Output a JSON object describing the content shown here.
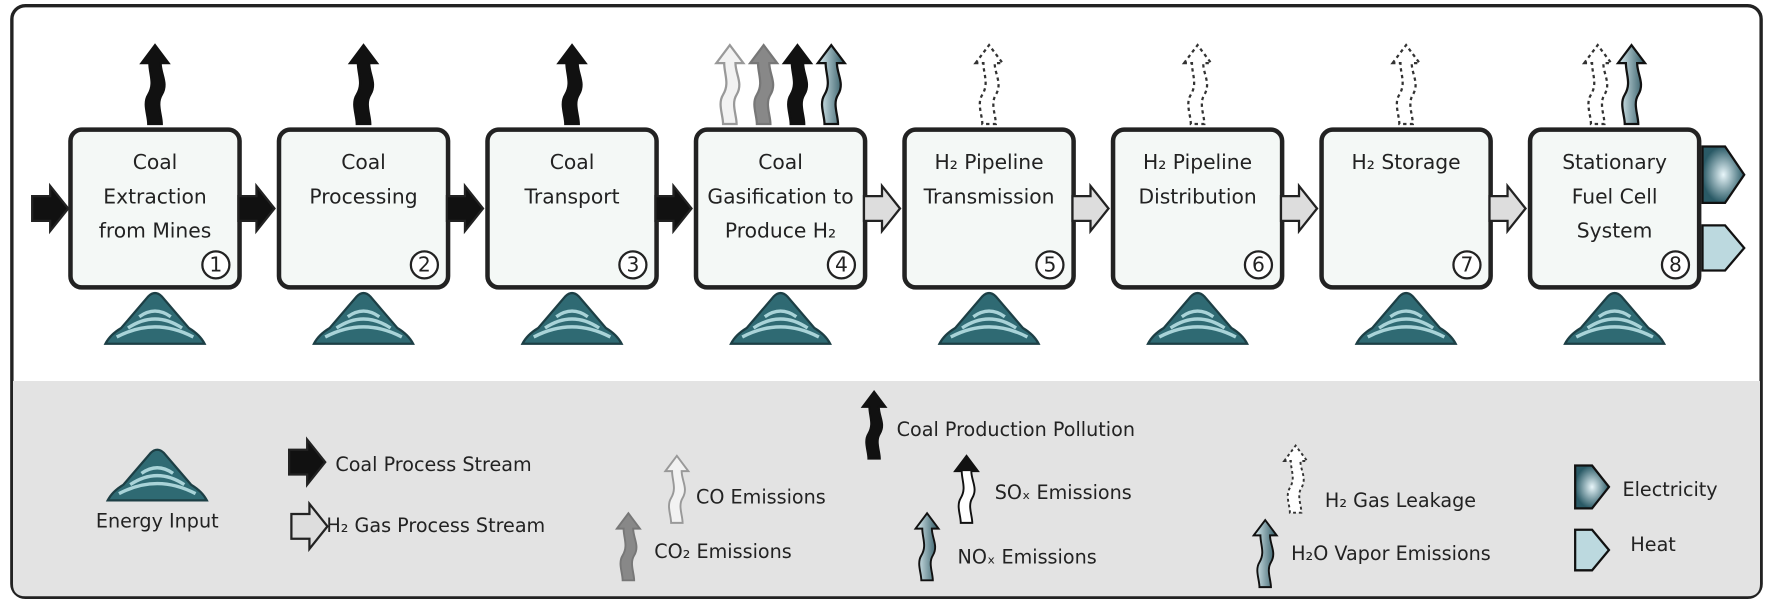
{
  "nodes": [
    {
      "lines": [
        "Coal",
        "Extraction",
        "from Mines"
      ],
      "number": 1
    },
    {
      "lines": [
        "Coal",
        "Processing"
      ],
      "number": 2
    },
    {
      "lines": [
        "Coal",
        "Transport"
      ],
      "number": 3
    },
    {
      "lines": [
        "Coal",
        "Gasification to",
        "Produce H₂"
      ],
      "number": 4
    },
    {
      "lines": [
        "H₂ Pipeline",
        "Transmission"
      ],
      "number": 5
    },
    {
      "lines": [
        "H₂ Pipeline",
        "Distribution"
      ],
      "number": 6
    },
    {
      "lines": [
        "H₂ Storage"
      ],
      "number": 7
    },
    {
      "lines": [
        "Stationary",
        "Fuel Cell",
        "System"
      ],
      "number": 8
    }
  ],
  "legend": [
    "Energy Input",
    "Coal Process Stream",
    "H₂ Gas Process Stream",
    "CO Emissions",
    "CO₂ Emissions",
    "Coal Production Pollution",
    "SOₓ Emissions",
    "NOₓ Emissions",
    "H₂ Gas Leakage",
    "H₂O Vapor Emissions",
    "Electricity",
    "Heat"
  ]
}
